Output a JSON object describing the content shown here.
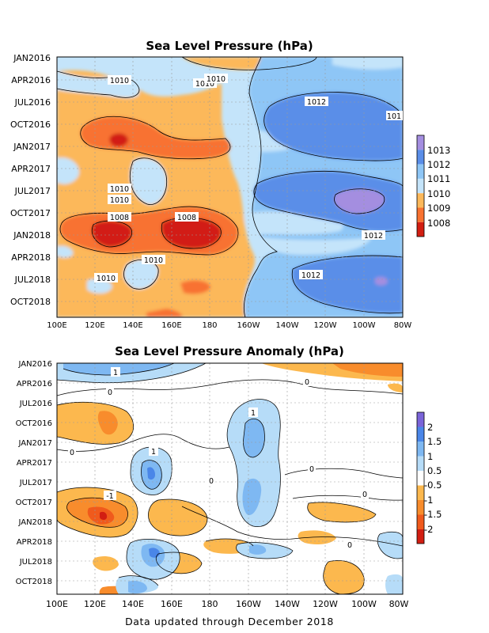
{
  "chart_data": [
    {
      "type": "heatmap",
      "title": "Sea Level Pressure (hPa)",
      "y_ticks": [
        "JAN2016",
        "APR2016",
        "JUL2016",
        "OCT2016",
        "JAN2017",
        "APR2017",
        "JUL2017",
        "OCT2017",
        "JAN2018",
        "APR2018",
        "JUL2018",
        "OCT2018"
      ],
      "x_ticks": [
        "100E",
        "120E",
        "140E",
        "160E",
        "180",
        "160W",
        "140W",
        "120W",
        "100W",
        "80W"
      ],
      "colorbar": {
        "labels": [
          "1013",
          "1012",
          "1011",
          "1010",
          "1009",
          "1008"
        ],
        "colors": [
          "#a48ee0",
          "#5a8ee8",
          "#8ec6f6",
          "#c4e4fa",
          "#fcb85a",
          "#f87230",
          "#d21e12"
        ]
      },
      "contour_labels": [
        "1010",
        "1010",
        "1010",
        "1012",
        "101",
        "1010",
        "1010",
        "1008",
        "1008",
        "1012",
        "1010",
        "1010",
        "1012"
      ],
      "grid": true
    },
    {
      "type": "heatmap",
      "title": "Sea Level Pressure Anomaly (hPa)",
      "y_ticks": [
        "JAN2016",
        "APR2016",
        "JUL2016",
        "OCT2016",
        "JAN2017",
        "APR2017",
        "JUL2017",
        "OCT2017",
        "JAN2018",
        "APR2018",
        "JUL2018",
        "OCT2018"
      ],
      "x_ticks": [
        "100E",
        "120E",
        "140E",
        "160E",
        "180",
        "160W",
        "140W",
        "120W",
        "100W",
        "80W"
      ],
      "colorbar": {
        "labels": [
          "2",
          "1.5",
          "1",
          "0.5",
          "-0.5",
          "-1",
          "-1.5",
          "-2"
        ],
        "colors": [
          "#7a64d8",
          "#4a86e8",
          "#7eb8f2",
          "#b6dcf8",
          "#ffffff",
          "#fcb84e",
          "#f88c2c",
          "#f05a1c",
          "#d21e12"
        ]
      },
      "contour_labels": [
        "1",
        "0",
        "0",
        "1",
        "0",
        "1",
        "0",
        "0",
        "0",
        "-1",
        "0"
      ],
      "grid": true
    }
  ],
  "footer": "Data updated through December 2018"
}
